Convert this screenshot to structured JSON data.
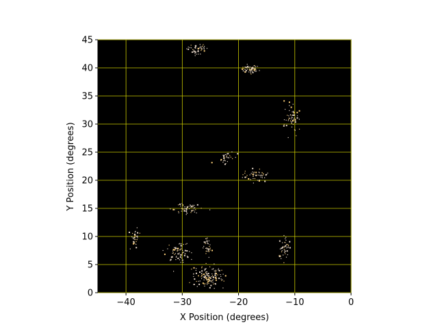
{
  "chart_data": {
    "type": "scatter",
    "title": "",
    "xlabel": "X Position (degrees)",
    "ylabel": "Y Position (degrees)",
    "xlim": [
      -45,
      0
    ],
    "ylim": [
      0,
      45
    ],
    "xticks": [
      -40,
      -30,
      -20,
      -10,
      0
    ],
    "yticks": [
      0,
      5,
      10,
      15,
      20,
      25,
      30,
      35,
      40,
      45
    ],
    "grid": true,
    "background_color": "#000000",
    "grid_color": "#c8c800",
    "point_color": "#e8d8c8",
    "point_color_alt": "#ffd27a",
    "clusters": [
      {
        "x": -27.5,
        "y": 43.5,
        "spread_x": 1.5,
        "spread_y": 0.8,
        "n": 45
      },
      {
        "x": -18,
        "y": 39.8,
        "spread_x": 1.4,
        "spread_y": 0.6,
        "n": 55
      },
      {
        "x": -10.5,
        "y": 31,
        "spread_x": 1.2,
        "spread_y": 2.4,
        "n": 55
      },
      {
        "x": -22,
        "y": 24,
        "spread_x": 1.4,
        "spread_y": 0.8,
        "n": 30
      },
      {
        "x": -17,
        "y": 21,
        "spread_x": 1.8,
        "spread_y": 0.9,
        "n": 50
      },
      {
        "x": -29.5,
        "y": 15,
        "spread_x": 2.2,
        "spread_y": 0.8,
        "n": 55
      },
      {
        "x": -38.5,
        "y": 10,
        "spread_x": 0.6,
        "spread_y": 1.4,
        "n": 30
      },
      {
        "x": -31,
        "y": 7.5,
        "spread_x": 1.8,
        "spread_y": 1.5,
        "n": 70
      },
      {
        "x": -25.5,
        "y": 8,
        "spread_x": 0.7,
        "spread_y": 1.6,
        "n": 35
      },
      {
        "x": -12,
        "y": 8.2,
        "spread_x": 1.0,
        "spread_y": 1.6,
        "n": 45
      },
      {
        "x": -25.5,
        "y": 3,
        "spread_x": 2.2,
        "spread_y": 1.6,
        "n": 130
      }
    ]
  }
}
